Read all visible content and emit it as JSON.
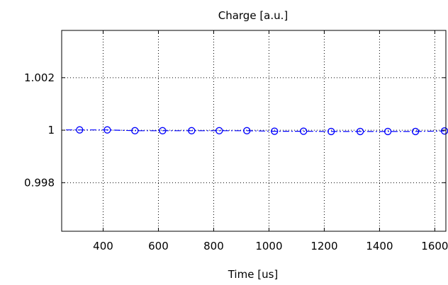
{
  "chart_data": {
    "type": "line",
    "title": "Charge [a.u.]",
    "xlabel": "Time [us]",
    "ylabel": "",
    "xlim": [
      250,
      1640
    ],
    "ylim": [
      0.99615,
      1.0038
    ],
    "xticks": [
      400,
      600,
      800,
      1000,
      1200,
      1400,
      1600
    ],
    "xtick_labels": [
      "400",
      "600",
      "800",
      "1000",
      "1200",
      "1400",
      "1600"
    ],
    "yticks": [
      0.998,
      1.0,
      1.002
    ],
    "ytick_labels": [
      "0.998",
      "1",
      "1.002"
    ],
    "grid": true,
    "series": [
      {
        "marker": "circle",
        "line_style": "dash-dot",
        "color": "#0000ff",
        "x": [
          315,
          415,
          515,
          615,
          720,
          820,
          920,
          1020,
          1125,
          1225,
          1330,
          1430,
          1530,
          1635
        ],
        "y": [
          1.00001,
          1.00001,
          0.99998,
          0.99998,
          0.99998,
          0.99998,
          0.99998,
          0.99996,
          0.99996,
          0.99995,
          0.99995,
          0.99995,
          0.99995,
          0.99997
        ]
      }
    ]
  }
}
